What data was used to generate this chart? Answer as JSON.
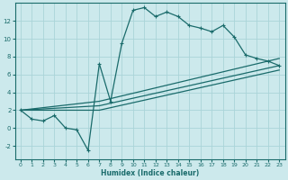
{
  "xlabel": "Humidex (Indice chaleur)",
  "bg_color": "#cce9ec",
  "grid_color": "#aad4d8",
  "line_color": "#1a6b6b",
  "xlim": [
    -0.5,
    23.5
  ],
  "ylim": [
    -3.5,
    14.0
  ],
  "xticks": [
    0,
    1,
    2,
    3,
    4,
    5,
    6,
    7,
    8,
    9,
    10,
    11,
    12,
    13,
    14,
    15,
    16,
    17,
    18,
    19,
    20,
    21,
    22,
    23
  ],
  "yticks": [
    -2,
    0,
    2,
    4,
    6,
    8,
    10,
    12
  ],
  "line1_x": [
    0,
    1,
    2,
    3,
    4,
    5,
    6,
    7,
    8,
    9,
    10,
    11,
    12,
    13,
    14,
    15,
    16,
    17,
    18,
    19,
    20,
    21,
    22,
    23
  ],
  "line1_y": [
    2.0,
    1.0,
    0.8,
    1.4,
    0.0,
    -0.2,
    -2.5,
    7.2,
    3.0,
    9.5,
    13.2,
    13.5,
    12.5,
    13.0,
    12.5,
    11.5,
    11.2,
    10.8,
    11.5,
    10.2,
    8.2,
    7.8,
    7.5,
    7.0
  ],
  "line2_x": [
    0,
    7,
    23
  ],
  "line2_y": [
    2.0,
    3.0,
    7.8
  ],
  "line3_x": [
    0,
    7,
    23
  ],
  "line3_y": [
    2.0,
    2.5,
    7.0
  ],
  "line4_x": [
    0,
    7,
    23
  ],
  "line4_y": [
    2.0,
    2.0,
    6.5
  ]
}
